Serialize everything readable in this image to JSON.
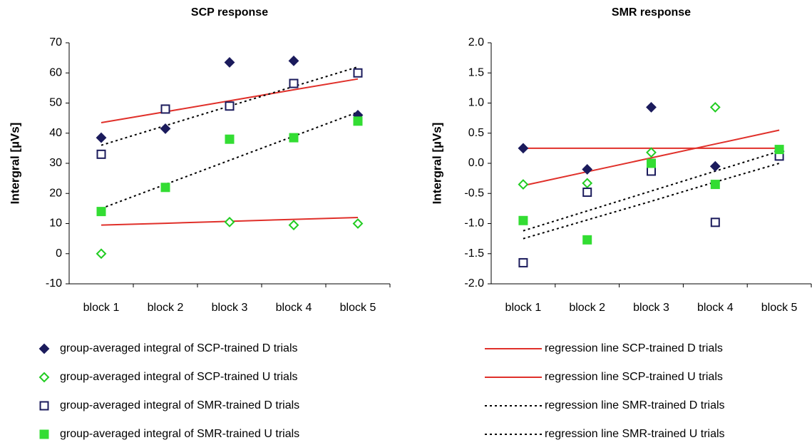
{
  "legend": [
    {
      "name": "group-averaged integral of SCP-trained D trials",
      "color": "#1b1b5c",
      "marker": "diamond",
      "filled": true
    },
    {
      "name": "group-averaged integral of SCP-trained U trials",
      "color": "#22cc22",
      "marker": "diamond",
      "filled": false
    },
    {
      "name": "group-averaged integral of SMR-trained D trials",
      "color": "#1b1b5c",
      "marker": "square",
      "filled": false
    },
    {
      "name": "group-averaged integral of SMR-trained U trials",
      "color": "#33dd33",
      "marker": "square",
      "filled": true
    },
    {
      "name": "regression line SCP-trained D trials",
      "color": "#e0302a",
      "line": "solid"
    },
    {
      "name": "regression line SCP-trained U trials",
      "color": "#e0302a",
      "line": "solid"
    },
    {
      "name": "regression line SMR-trained D trials",
      "color": "#000000",
      "line": "dotted"
    },
    {
      "name": "regression line SMR-trained U trials",
      "color": "#000000",
      "line": "dotted"
    }
  ],
  "chart_data": [
    {
      "type": "line",
      "title": "SCP response",
      "y_label": "Intergral [µVs]",
      "categories": [
        "block 1",
        "block 2",
        "block 3",
        "block 4",
        "block 5"
      ],
      "ylim": [
        -10,
        70
      ],
      "yticks": [
        -10,
        0,
        10,
        20,
        30,
        40,
        50,
        60,
        70
      ],
      "series": [
        {
          "values": [
            38.5,
            41.5,
            63.5,
            64,
            46
          ]
        },
        {
          "values": [
            0,
            null,
            10.5,
            9.5,
            10
          ]
        },
        {
          "values": [
            33,
            48,
            49,
            56.5,
            60
          ]
        },
        {
          "values": [
            14,
            22,
            38,
            38.5,
            44
          ]
        },
        {
          "values": [
            43.5,
            47.1,
            50.75,
            54.4,
            58
          ]
        },
        {
          "values": [
            9.5,
            10.1,
            10.75,
            11.4,
            12
          ]
        },
        {
          "values": [
            36,
            42.5,
            49,
            55.5,
            62
          ]
        },
        {
          "values": [
            15,
            23,
            31,
            39,
            47
          ]
        }
      ]
    },
    {
      "type": "line",
      "title": "SMR response",
      "y_label": "Intergral [µVs]",
      "categories": [
        "block 1",
        "block 2",
        "block 3",
        "block 4",
        "block 5"
      ],
      "ylim": [
        -2,
        2
      ],
      "yticks": [
        {
          "value": -2,
          "label": "-2.0"
        },
        -1.5,
        {
          "value": -1,
          "label": "-1.0"
        },
        -0.5,
        {
          "value": 0,
          "label": "0.0"
        },
        0.5,
        {
          "value": 1,
          "label": "1.0"
        },
        1.5,
        {
          "value": 2,
          "label": "2.0"
        }
      ],
      "series": [
        {
          "values": [
            0.25,
            -0.1,
            0.93,
            -0.05,
            0.2
          ]
        },
        {
          "values": [
            -0.35,
            -0.33,
            0.18,
            0.93,
            null
          ]
        },
        {
          "values": [
            -1.65,
            -0.48,
            -0.13,
            -0.98,
            0.12
          ]
        },
        {
          "values": [
            -0.95,
            -1.27,
            0,
            -0.35,
            0.23
          ]
        },
        {
          "values": [
            0.25,
            0.25,
            0.25,
            0.25,
            0.25
          ]
        },
        {
          "values": [
            -0.37,
            -0.14,
            0.09,
            0.32,
            0.55
          ]
        },
        {
          "values": [
            -1.12,
            -0.79,
            -0.46,
            -0.13,
            0.2
          ]
        },
        {
          "values": [
            -1.25,
            -0.94,
            -0.63,
            -0.31,
            0
          ]
        }
      ]
    }
  ]
}
